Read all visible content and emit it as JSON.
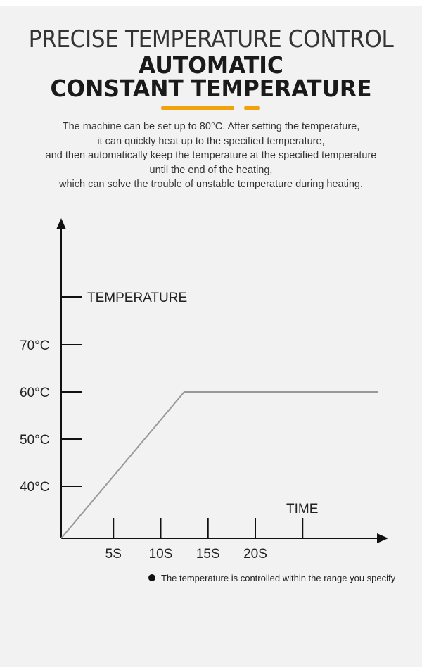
{
  "header": {
    "title": "PRECISE TEMPERATURE CONTROL",
    "subtitle_line1": "AUTOMATIC",
    "subtitle_line2": "CONSTANT TEMPERATURE"
  },
  "description": {
    "lines": [
      "The machine can be set up to 80°C. After setting the temperature,",
      "it can quickly heat up to the specified temperature,",
      "and then automatically keep the temperature at the specified temperature",
      "until the end of the heating,",
      "which can solve the trouble of unstable temperature during heating."
    ]
  },
  "colors": {
    "accent": "#f2a20c",
    "line": "#999999",
    "axis": "#111111"
  },
  "chart_data": {
    "type": "line",
    "ylabel": "TEMPERATURE",
    "xlabel": "TIME",
    "y_ticks": [
      "40°C",
      "50°C",
      "60°C",
      "70°C"
    ],
    "y_tick_values": [
      40,
      50,
      60,
      70
    ],
    "x_ticks": [
      "5S",
      "10S",
      "15S",
      "20S"
    ],
    "x_tick_values": [
      5,
      10,
      15,
      20
    ],
    "series": [
      {
        "x": [
          0,
          13,
          33.5
        ],
        "y": [
          29,
          60,
          60
        ]
      }
    ],
    "legend_note": "The temperature is controlled within the range you specify"
  }
}
